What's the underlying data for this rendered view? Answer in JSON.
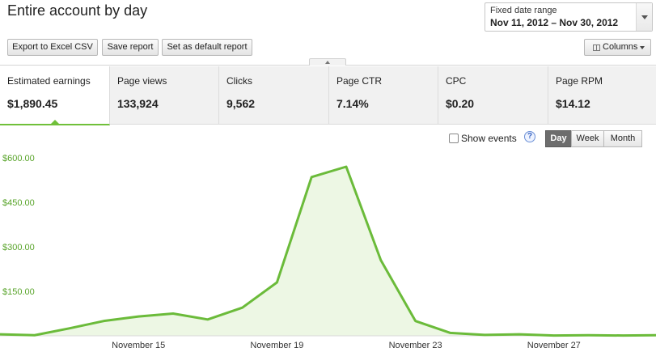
{
  "header": {
    "title": "Entire account by day",
    "date_range_label": "Fixed date range",
    "date_range_value": "Nov 11, 2012 – Nov 30, 2012"
  },
  "toolbar": {
    "export_label": "Export to Excel CSV",
    "save_label": "Save report",
    "default_label": "Set as default report",
    "columns_label": "Columns"
  },
  "metrics": [
    {
      "label": "Estimated earnings",
      "value": "$1,890.45",
      "active": true
    },
    {
      "label": "Page views",
      "value": "133,924",
      "active": false
    },
    {
      "label": "Clicks",
      "value": "9,562",
      "active": false
    },
    {
      "label": "Page CTR",
      "value": "7.14%",
      "active": false
    },
    {
      "label": "CPC",
      "value": "$0.20",
      "active": false
    },
    {
      "label": "Page RPM",
      "value": "$14.12",
      "active": false
    }
  ],
  "controls": {
    "show_events_label": "Show events",
    "show_events_checked": false,
    "help_glyph": "?",
    "granularity": [
      "Day",
      "Week",
      "Month"
    ],
    "granularity_selected": "Day"
  },
  "chart_data": {
    "type": "area",
    "x": [
      "Nov 11",
      "Nov 12",
      "Nov 13",
      "Nov 14",
      "Nov 15",
      "Nov 16",
      "Nov 17",
      "Nov 18",
      "Nov 19",
      "Nov 20",
      "Nov 21",
      "Nov 22",
      "Nov 23",
      "Nov 24",
      "Nov 25",
      "Nov 26",
      "Nov 27",
      "Nov 28",
      "Nov 29",
      "Nov 30"
    ],
    "values": [
      5,
      2,
      25,
      50,
      65,
      75,
      55,
      95,
      180,
      535,
      570,
      255,
      50,
      10,
      3,
      5,
      1,
      2,
      1,
      2
    ],
    "y_ticks": [
      "$150.00",
      "$300.00",
      "$450.00",
      "$600.00"
    ],
    "x_tick_labels": [
      {
        "index": 4,
        "label": "November 15"
      },
      {
        "index": 8,
        "label": "November 19"
      },
      {
        "index": 12,
        "label": "November 23"
      },
      {
        "index": 16,
        "label": "November 27"
      }
    ],
    "ylim": [
      0,
      600
    ],
    "grid": false,
    "line_color": "#6bbb3a",
    "fill_color": "#edf7e4",
    "tick_color": "#5aa52c"
  }
}
